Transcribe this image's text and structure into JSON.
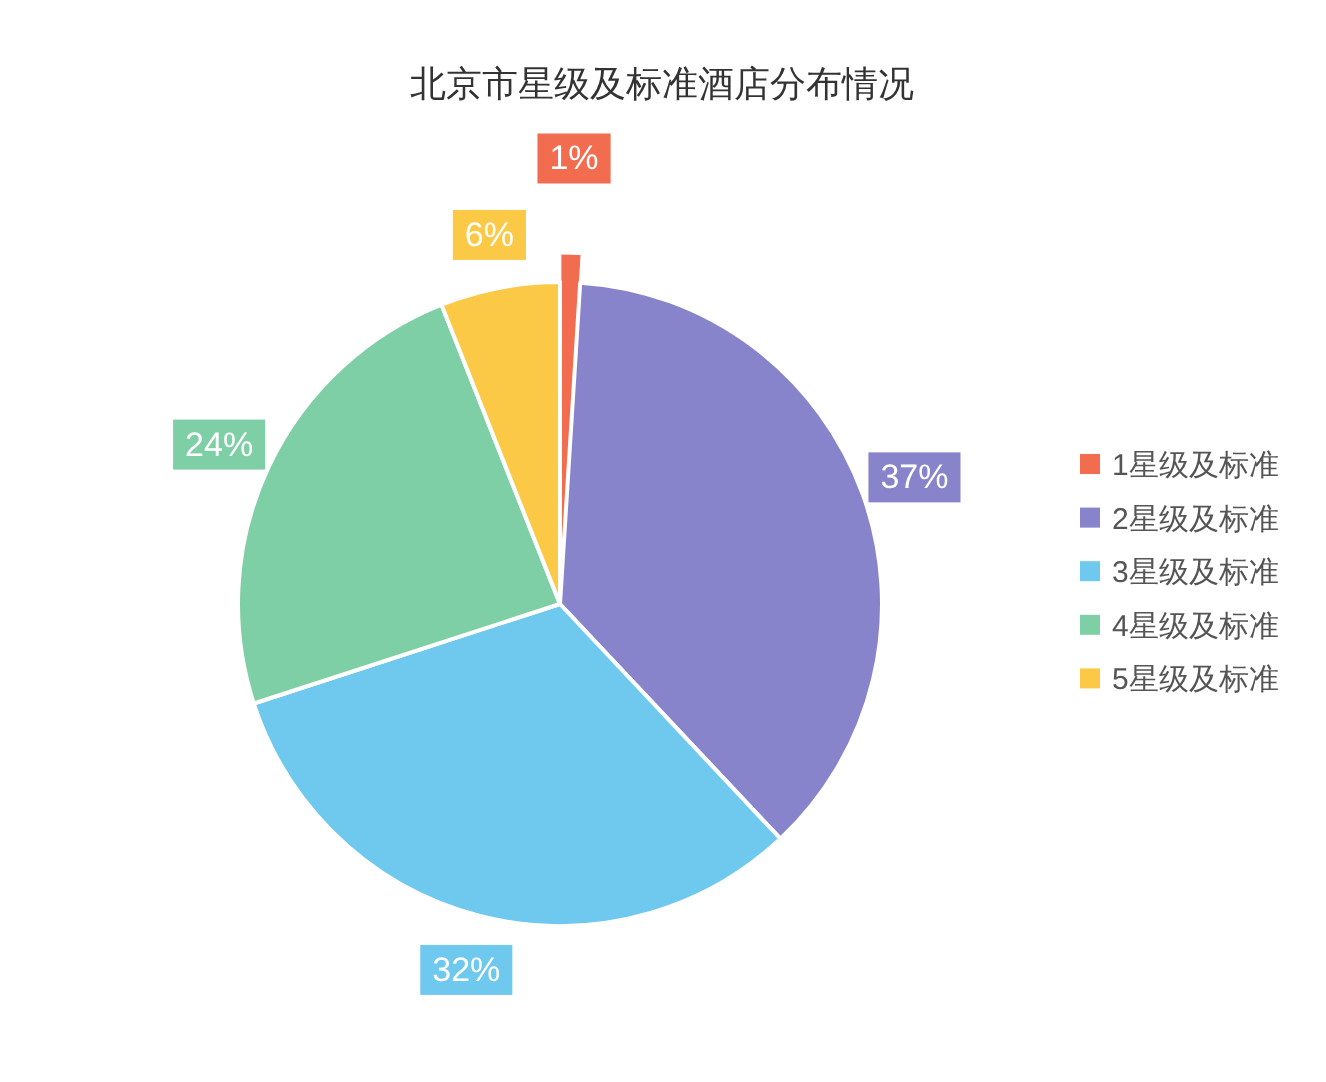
{
  "chart_data": {
    "type": "pie",
    "title": "北京市星级及标准酒店分布情况",
    "categories": [
      "1星级及标准",
      "2星级及标准",
      "3星级及标准",
      "4星级及标准",
      "5星级及标准"
    ],
    "values": [
      1,
      37,
      32,
      24,
      6
    ],
    "value_labels": [
      "1%",
      "37%",
      "32%",
      "24%",
      "6%"
    ],
    "colors": [
      "#f26d4f",
      "#8784cb",
      "#6fc8ed",
      "#7fcfa6",
      "#fcc947"
    ],
    "legend": "right"
  }
}
